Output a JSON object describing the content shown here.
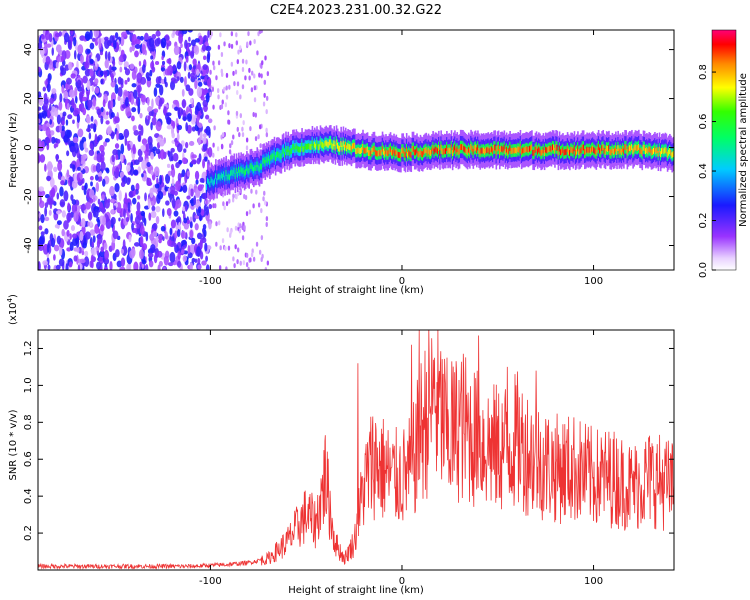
{
  "title": "C2E4.2023.231.00.32.G22",
  "chart_data": [
    {
      "type": "heatmap",
      "xlabel": "Height of straight line (km)",
      "ylabel": "Frequency (Hz)",
      "xlim": [
        -190,
        142
      ],
      "ylim": [
        -50,
        48
      ],
      "xticks": [
        -100,
        0,
        100
      ],
      "yticks": [
        -40,
        -20,
        0,
        20,
        40
      ],
      "colorbar": {
        "label": "Normalized spectral amplitude",
        "range": [
          0.0,
          0.97
        ],
        "ticks": [
          0.0,
          0.2,
          0.4,
          0.6,
          0.8
        ],
        "colormap": "rainbow (white-violet-blue-cyan-green-yellow-red-magenta)"
      },
      "ridge": [
        {
          "x": -102,
          "freq": -15,
          "amp": 0.45
        },
        {
          "x": -95,
          "freq": -12,
          "amp": 0.5
        },
        {
          "x": -85,
          "freq": -10,
          "amp": 0.55
        },
        {
          "x": -75,
          "freq": -8,
          "amp": 0.55
        },
        {
          "x": -65,
          "freq": -3,
          "amp": 0.6
        },
        {
          "x": -55,
          "freq": 0,
          "amp": 0.65
        },
        {
          "x": -45,
          "freq": 1,
          "amp": 0.7
        },
        {
          "x": -35,
          "freq": 1,
          "amp": 0.8
        },
        {
          "x": -20,
          "freq": -1,
          "amp": 0.85
        },
        {
          "x": 0,
          "freq": -2,
          "amp": 0.9
        },
        {
          "x": 25,
          "freq": -1,
          "amp": 0.9
        },
        {
          "x": 50,
          "freq": -1,
          "amp": 0.9
        },
        {
          "x": 75,
          "freq": -1,
          "amp": 0.9
        },
        {
          "x": 100,
          "freq": -1,
          "amp": 0.9
        },
        {
          "x": 125,
          "freq": -1,
          "amp": 0.85
        },
        {
          "x": 142,
          "freq": -2,
          "amp": 0.8
        }
      ],
      "noise_region_x": [
        -190,
        -100
      ]
    },
    {
      "type": "line",
      "xlabel": "Height of straight line (km)",
      "ylabel": "SNR (10 * v/v)",
      "y_multiplier": "(x10",
      "y_multiplier_exp": "4",
      "y_multiplier_close": ")",
      "xlim": [
        -190,
        142
      ],
      "ylim": [
        0,
        1.3
      ],
      "xticks": [
        -100,
        0,
        100
      ],
      "yticks": [
        0.2,
        0.4,
        0.6,
        0.8,
        1.0,
        1.2
      ],
      "color": "#ee3333",
      "series": [
        {
          "x": [
            -190,
            -170,
            -150,
            -130,
            -110,
            -90,
            -80,
            -70,
            -60,
            -50,
            -45,
            -40,
            -35,
            -30,
            -25,
            -20,
            -15,
            -10,
            -5,
            0,
            5,
            10,
            15,
            20,
            25,
            30,
            35,
            40,
            50,
            60,
            70,
            80,
            90,
            100,
            110,
            120,
            130,
            142
          ],
          "values": [
            0.02,
            0.02,
            0.02,
            0.02,
            0.02,
            0.03,
            0.04,
            0.06,
            0.15,
            0.3,
            0.25,
            0.5,
            0.15,
            0.06,
            0.15,
            0.45,
            0.6,
            0.55,
            0.5,
            0.5,
            0.55,
            0.75,
            0.9,
            0.85,
            0.7,
            0.8,
            0.75,
            0.7,
            0.65,
            0.7,
            0.6,
            0.55,
            0.55,
            0.5,
            0.5,
            0.45,
            0.5,
            0.45
          ]
        }
      ],
      "peaks": [
        {
          "x": -40,
          "value": 0.73
        },
        {
          "x": -23,
          "value": 1.12
        },
        {
          "x": 5,
          "value": 1.22
        },
        {
          "x": 9,
          "value": 1.3
        },
        {
          "x": 17,
          "value": 1.15
        },
        {
          "x": 26,
          "value": 1.13
        },
        {
          "x": 40,
          "value": 1.27
        },
        {
          "x": 55,
          "value": 1.1
        },
        {
          "x": 70,
          "value": 1.08
        }
      ]
    }
  ]
}
